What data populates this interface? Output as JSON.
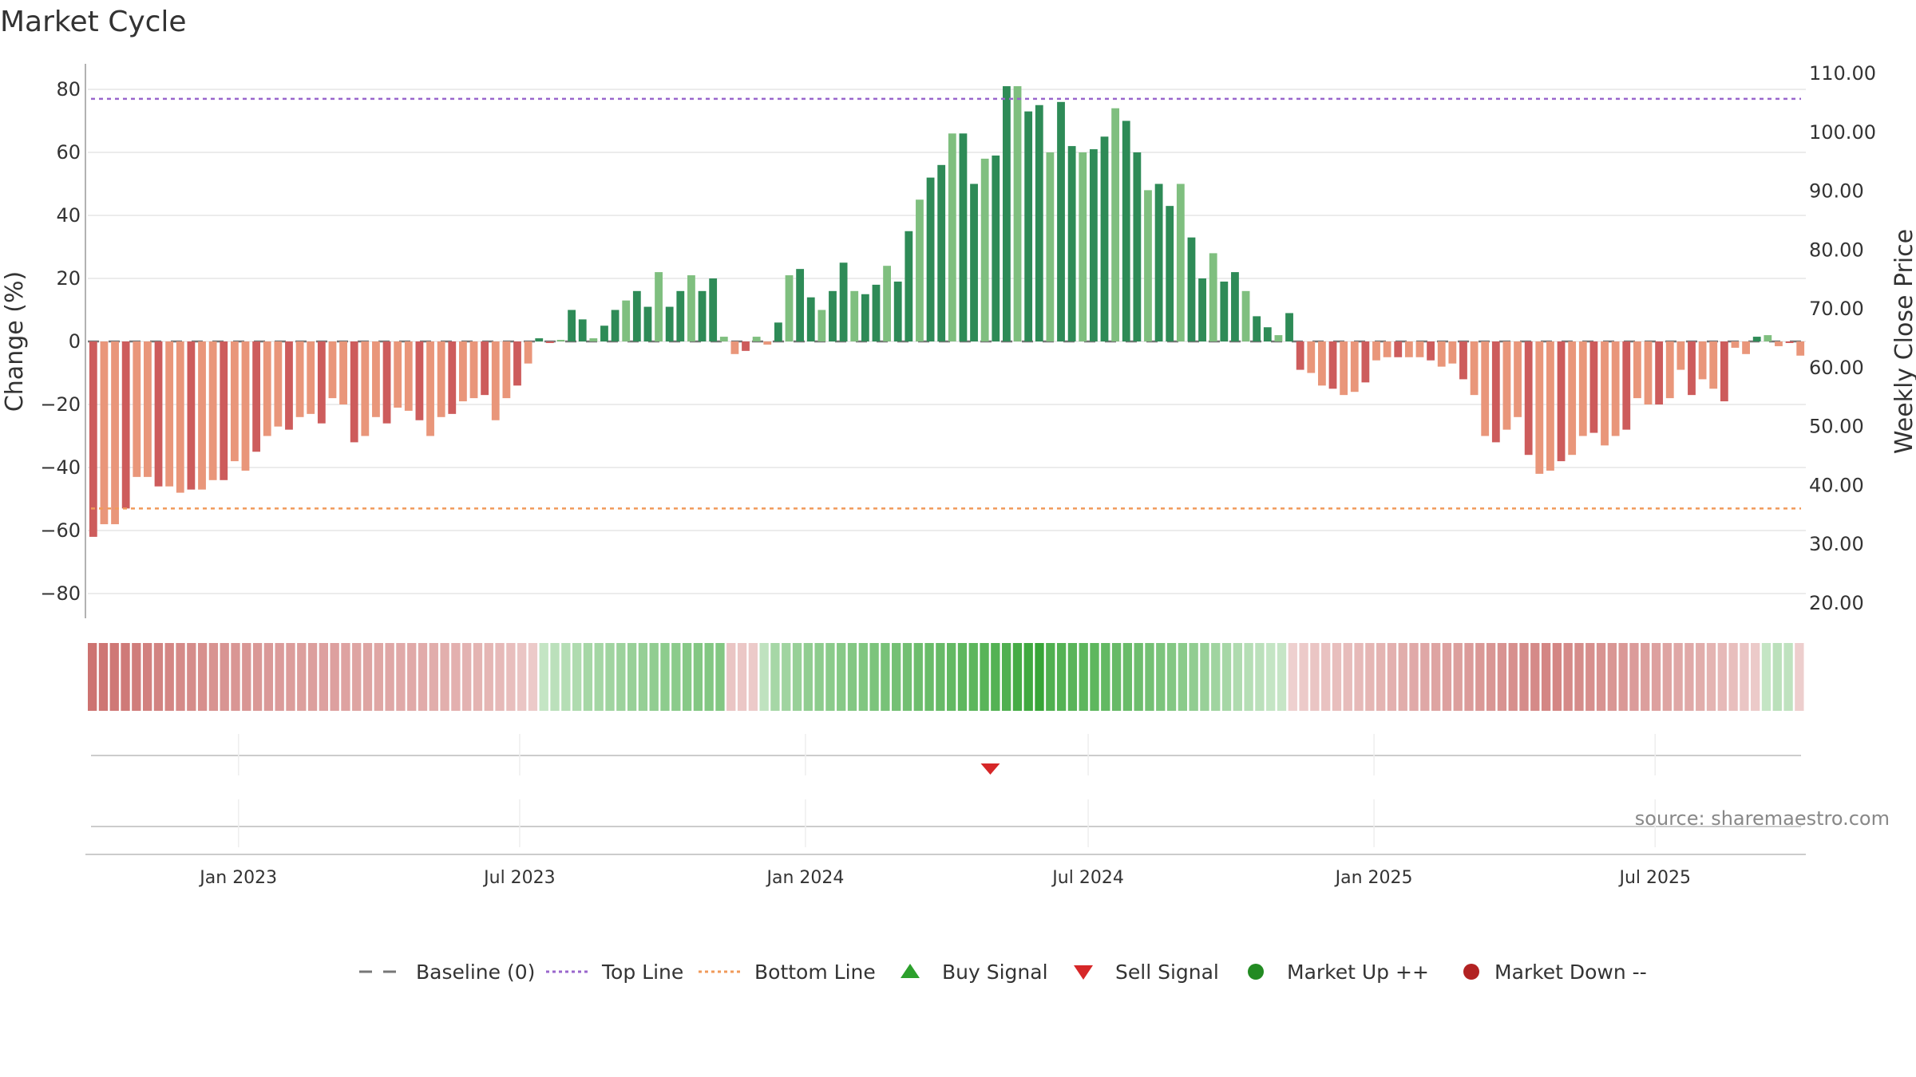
{
  "chart_data": {
    "type": "bar",
    "title": "Market Cycle",
    "ylabel": "Change (%)",
    "y2label": "Weekly Close Price",
    "ylim": [
      -88,
      88
    ],
    "yticks": [
      80,
      60,
      40,
      20,
      0,
      -20,
      -40,
      -60,
      -80
    ],
    "ytick_labels": [
      "80",
      "60",
      "40",
      "20",
      "0",
      "−20",
      "−40",
      "−60",
      "−80"
    ],
    "y2ticks": [
      110,
      100,
      90,
      80,
      70,
      60,
      50,
      40,
      30,
      20
    ],
    "y2tick_labels": [
      "110.00",
      "100.00",
      "90.00",
      "80.00",
      "70.00",
      "60.00",
      "50.00",
      "40.00",
      "30.00",
      "20.00"
    ],
    "y2lim": [
      17.5,
      115
    ],
    "x_start": "2022-09-26",
    "x_end": "2025-10-06",
    "xticks": [
      {
        "date": "2023-01-01",
        "label": "Jan 2023"
      },
      {
        "date": "2023-07-01",
        "label": "Jul 2023"
      },
      {
        "date": "2024-01-01",
        "label": "Jan 2024"
      },
      {
        "date": "2024-07-01",
        "label": "Jul 2024"
      },
      {
        "date": "2025-01-01",
        "label": "Jan 2025"
      },
      {
        "date": "2025-07-01",
        "label": "Jul 2025"
      }
    ],
    "top_line": 77,
    "bottom_line": -53,
    "series": [
      {
        "name": "Change (%)",
        "values": [
          -62,
          -58,
          -58,
          -53,
          -43,
          -43,
          -46,
          -46,
          -48,
          -47,
          -47,
          -44,
          -44,
          -38,
          -41,
          -35,
          -30,
          -27,
          -28,
          -24,
          -23,
          -26,
          -18,
          -20,
          -32,
          -30,
          -24,
          -26,
          -21,
          -22,
          -25,
          -30,
          -24,
          -23,
          -19,
          -18,
          -17,
          -25,
          -18,
          -14,
          -7,
          1,
          -0.5,
          0.5,
          10,
          7,
          1,
          5,
          10,
          13,
          16,
          11,
          22,
          11,
          16,
          21,
          16,
          20,
          1.5,
          -4,
          -3,
          1.5,
          -1,
          6,
          21,
          23,
          14,
          10,
          16,
          25,
          16,
          15,
          18,
          24,
          19,
          35,
          45,
          52,
          56,
          66,
          66,
          50,
          58,
          59,
          81,
          81,
          73,
          75,
          60,
          76,
          62,
          60,
          61,
          65,
          74,
          70,
          60,
          48,
          50,
          43,
          50,
          33,
          20,
          28,
          19,
          22,
          16,
          8,
          4.5,
          2,
          9,
          -9,
          -10,
          -14,
          -15,
          -17,
          -16,
          -13,
          -6,
          -5,
          -5,
          -5,
          -5,
          -6,
          -8,
          -7,
          -12,
          -17,
          -30,
          -32,
          -28,
          -24,
          -36,
          -42,
          -41,
          -38,
          -36,
          -30,
          -29,
          -33,
          -30,
          -28,
          -18,
          -20,
          -20,
          -18,
          -9,
          -17,
          -12,
          -15,
          -19,
          -2,
          -4,
          1.5,
          2,
          -1.5,
          -0.5,
          -4.5
        ]
      }
    ],
    "heat_strip": [
      -73,
      -71,
      -70,
      -68,
      -66,
      -64,
      -62,
      -60,
      -58,
      -56,
      -54,
      -52,
      -51,
      -50,
      -49,
      -48,
      -47,
      -46,
      -45,
      -44,
      -43,
      -42,
      -42,
      -41,
      -40,
      -40,
      -39,
      -38,
      -37,
      -36,
      -35,
      -34,
      -33,
      -32,
      -31,
      -30,
      -28,
      -26,
      -22,
      -18,
      -14,
      12,
      16,
      20,
      24,
      28,
      30,
      32,
      34,
      36,
      38,
      40,
      42,
      44,
      46,
      48,
      48,
      48,
      -18,
      -16,
      -14,
      14,
      28,
      32,
      36,
      40,
      42,
      44,
      46,
      48,
      50,
      52,
      54,
      56,
      58,
      60,
      62,
      64,
      66,
      68,
      70,
      72,
      74,
      76,
      82,
      86,
      90,
      76,
      74,
      72,
      70,
      68,
      66,
      64,
      62,
      60,
      56,
      52,
      48,
      44,
      40,
      36,
      32,
      28,
      24,
      20,
      16,
      12,
      10,
      -10,
      -14,
      -18,
      -20,
      -22,
      -24,
      -26,
      -28,
      -30,
      -32,
      -34,
      -36,
      -38,
      -40,
      -42,
      -44,
      -46,
      -48,
      -50,
      -52,
      -54,
      -56,
      -58,
      -60,
      -60,
      -58,
      -56,
      -54,
      -52,
      -50,
      -48,
      -46,
      -44,
      -42,
      -40,
      -38,
      -36,
      -34,
      -30,
      -26,
      -22,
      -18,
      -14,
      12,
      16,
      14,
      -12
    ],
    "signals": [
      {
        "type": "sell",
        "date": "2024-04-29"
      }
    ],
    "source": "source: sharemaestro.com",
    "legend_position": "bottom",
    "legend": [
      {
        "label": "Baseline (0)",
        "symbol": "dash",
        "color": "#777777"
      },
      {
        "label": "Top Line",
        "symbol": "dot-line",
        "color": "#9966cc"
      },
      {
        "label": "Bottom Line",
        "symbol": "dot-line",
        "color": "#f09a5a"
      },
      {
        "label": "Buy Signal",
        "symbol": "triangle-up",
        "color": "#2ca02c"
      },
      {
        "label": "Sell Signal",
        "symbol": "triangle-down",
        "color": "#d62728"
      },
      {
        "label": "Market Up ++",
        "symbol": "circle",
        "color": "#228b22"
      },
      {
        "label": "Market Down --",
        "symbol": "circle",
        "color": "#b22222"
      }
    ],
    "colors": {
      "up_dark": "#2e8b57",
      "up_light": "#7fbf7f",
      "down_dark": "#cd5c5c",
      "down_light": "#e9967a",
      "strip_up": "#2ca02c",
      "strip_down": "#c0504d",
      "top_line": "#9966cc",
      "bottom_line": "#f09a5a"
    }
  }
}
